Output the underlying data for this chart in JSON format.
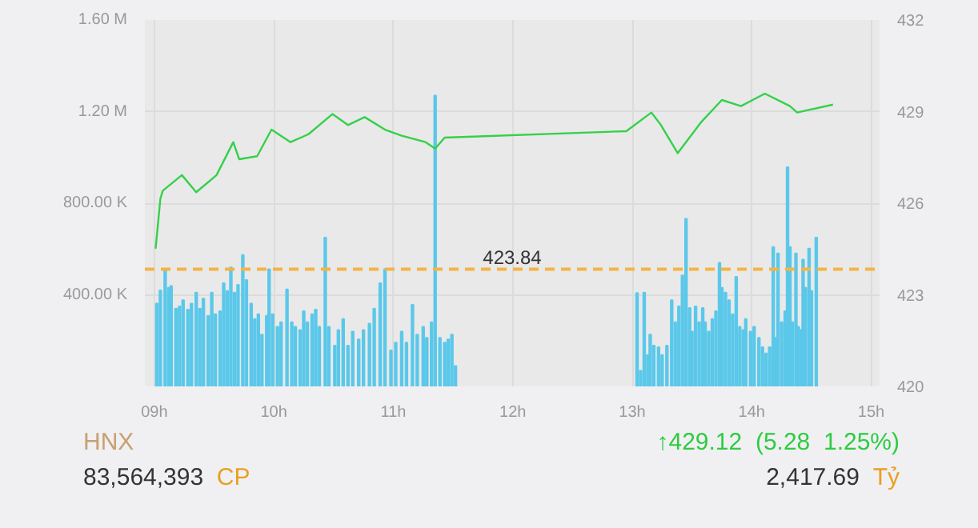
{
  "chart_data": {
    "type": "bar",
    "xlim": [
      8.92,
      15.07
    ],
    "ylim": [
      0,
      1600000
    ],
    "y2lim": [
      420,
      432
    ],
    "xticks": [
      {
        "value": 9,
        "label": "09h"
      },
      {
        "value": 10,
        "label": "10h"
      },
      {
        "value": 11,
        "label": "11h"
      },
      {
        "value": 12,
        "label": "12h"
      },
      {
        "value": 13,
        "label": "13h"
      },
      {
        "value": 14,
        "label": "14h"
      },
      {
        "value": 15,
        "label": "15h"
      }
    ],
    "yticks": [
      {
        "value": 400000,
        "label": "400.00 K"
      },
      {
        "value": 800000,
        "label": "800.00 K"
      },
      {
        "value": 1200000,
        "label": "1.20 M"
      },
      {
        "value": 1600000,
        "label": "1.60 M"
      }
    ],
    "y2ticks": [
      420,
      423,
      426,
      429,
      432
    ],
    "grid": true,
    "ref_lines": [
      {
        "axis": "y2",
        "value": 423.84,
        "label": "423.84",
        "color": "#f5b342",
        "line_style": "dashed"
      }
    ],
    "annotations": [
      "HNX",
      "83,564,393 CP",
      "↑429.12  (5.28  1.25%)",
      "2,417.69 Tỷ"
    ],
    "series": [
      {
        "color": "#5bc8ea",
        "x": [
          9.02,
          9.05,
          9.09,
          9.12,
          9.14,
          9.18,
          9.21,
          9.24,
          9.28,
          9.31,
          9.35,
          9.38,
          9.41,
          9.45,
          9.48,
          9.51,
          9.55,
          9.58,
          9.61,
          9.64,
          9.67,
          9.7,
          9.74,
          9.77,
          9.81,
          9.84,
          9.87,
          9.9,
          9.94,
          9.96,
          9.99,
          10.03,
          10.06,
          10.11,
          10.15,
          10.18,
          10.22,
          10.25,
          10.28,
          10.32,
          10.35,
          10.38,
          10.43,
          10.46,
          10.51,
          10.54,
          10.58,
          10.62,
          10.66,
          10.71,
          10.75,
          10.8,
          10.84,
          10.89,
          10.93,
          10.98,
          11.02,
          11.07,
          11.11,
          11.16,
          11.2,
          11.25,
          11.28,
          11.32,
          11.35,
          11.39,
          11.43,
          11.46,
          11.49,
          11.52,
          13.04,
          13.07,
          13.1,
          13.13,
          13.15,
          13.18,
          13.22,
          13.25,
          13.29,
          13.33,
          13.36,
          13.39,
          13.42,
          13.45,
          13.48,
          13.5,
          13.53,
          13.56,
          13.59,
          13.61,
          13.64,
          13.67,
          13.7,
          13.73,
          13.75,
          13.78,
          13.81,
          13.84,
          13.87,
          13.9,
          13.93,
          13.95,
          13.99,
          14.02,
          14.06,
          14.09,
          14.12,
          14.15,
          14.18,
          14.2,
          14.22,
          14.25,
          14.28,
          14.3,
          14.32,
          14.34,
          14.37,
          14.39,
          14.41,
          14.43,
          14.45,
          14.48,
          14.5,
          14.54
        ],
        "values": [
          362000,
          419000,
          512000,
          431000,
          438000,
          340000,
          349000,
          376000,
          335000,
          362000,
          410000,
          340000,
          383000,
          308000,
          410000,
          315000,
          328000,
          451000,
          417000,
          520000,
          410000,
          444000,
          574000,
          465000,
          362000,
          294000,
          315000,
          226000,
          308000,
          512000,
          315000,
          260000,
          280000,
          424000,
          280000,
          260000,
          246000,
          328000,
          280000,
          315000,
          335000,
          260000,
          650000,
          260000,
          178000,
          246000,
          294000,
          178000,
          239000,
          205000,
          246000,
          274000,
          340000,
          451000,
          512000,
          157000,
          191000,
          239000,
          191000,
          356000,
          226000,
          260000,
          212000,
          280000,
          1270000,
          212000,
          191000,
          205000,
          226000,
          89000,
          408000,
          68000,
          410000,
          137000,
          226000,
          178000,
          171000,
          137000,
          178000,
          376000,
          280000,
          349000,
          485000,
          732000,
          342000,
          239000,
          349000,
          280000,
          342000,
          280000,
          239000,
          294000,
          328000,
          540000,
          431000,
          410000,
          376000,
          315000,
          479000,
          260000,
          246000,
          294000,
          239000,
          260000,
          212000,
          171000,
          144000,
          171000,
          609000,
          212000,
          581000,
          280000,
          328000,
          957000,
          609000,
          280000,
          581000,
          260000,
          246000,
          554000,
          431000,
          602000,
          417000,
          650000
        ]
      },
      {
        "type": "line",
        "axis": "y2",
        "color": "#35d04a",
        "x": [
          9.01,
          9.05,
          9.07,
          9.23,
          9.35,
          9.52,
          9.66,
          9.71,
          9.86,
          9.98,
          10.14,
          10.29,
          10.49,
          10.62,
          10.76,
          10.93,
          11.07,
          11.27,
          11.35,
          11.43,
          12.95,
          13.16,
          13.24,
          13.38,
          13.58,
          13.75,
          13.91,
          14.11,
          14.32,
          14.38,
          14.68
        ],
        "values": [
          424.51,
          426.15,
          426.41,
          426.92,
          426.36,
          426.92,
          428.0,
          427.44,
          427.54,
          428.41,
          428.0,
          428.26,
          428.92,
          428.56,
          428.82,
          428.41,
          428.21,
          428.0,
          427.79,
          428.15,
          428.36,
          428.97,
          428.56,
          427.64,
          428.67,
          429.38,
          429.18,
          429.59,
          429.18,
          428.97,
          429.23
        ]
      }
    ]
  }
}
